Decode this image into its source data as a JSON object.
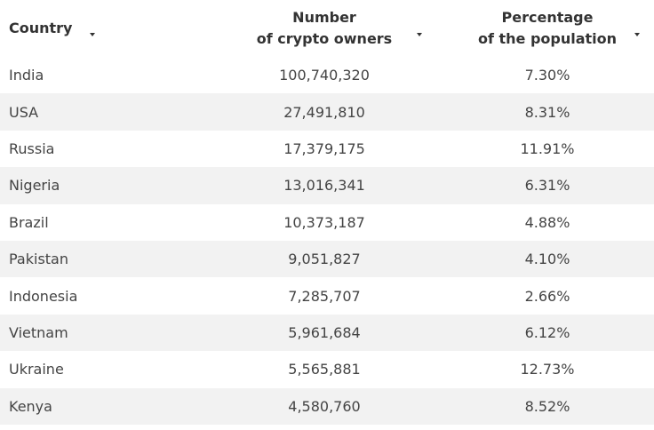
{
  "table": {
    "headers": [
      [
        "Country"
      ],
      [
        "Number",
        "of crypto owners"
      ],
      [
        "Percentage",
        "of the population"
      ]
    ],
    "rows": [
      [
        "India",
        "100,740,320",
        "7.30%"
      ],
      [
        "USA",
        "27,491,810",
        "8.31%"
      ],
      [
        "Russia",
        "17,379,175",
        "11.91%"
      ],
      [
        "Nigeria",
        "13,016,341",
        "6.31%"
      ],
      [
        "Brazil",
        "10,373,187",
        "4.88%"
      ],
      [
        "Pakistan",
        "9,051,827",
        "4.10%"
      ],
      [
        "Indonesia",
        "7,285,707",
        "2.66%"
      ],
      [
        "Vietnam",
        "5,961,684",
        "6.12%"
      ],
      [
        "Ukraine",
        "5,565,881",
        "12.73%"
      ],
      [
        "Kenya",
        "4,580,760",
        "8.52%"
      ]
    ]
  }
}
